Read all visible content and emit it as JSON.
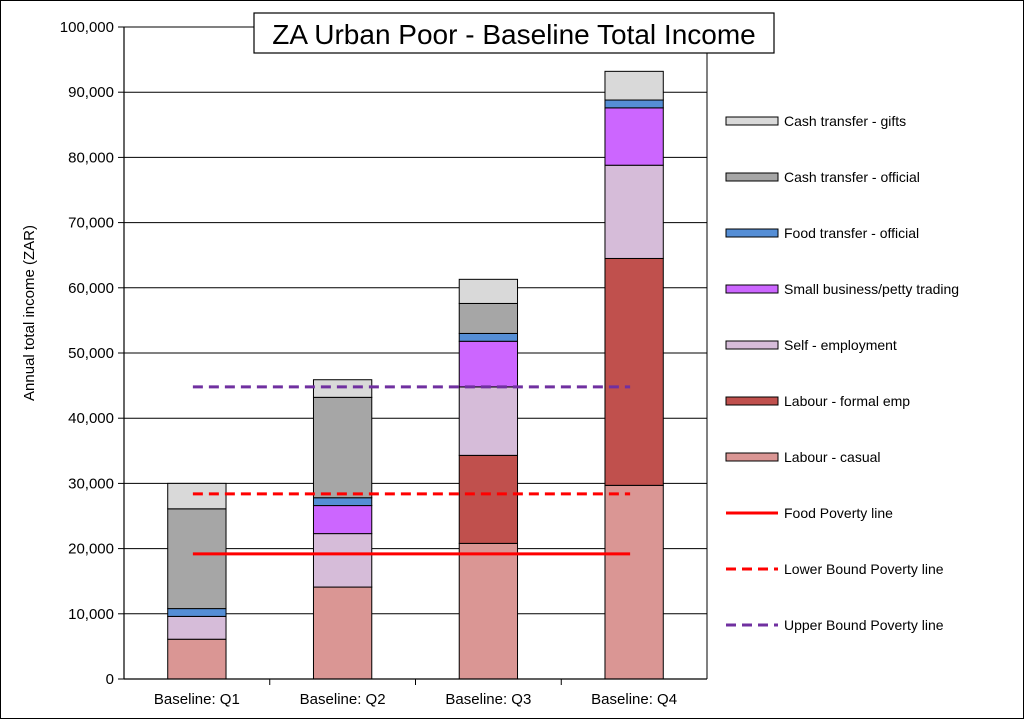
{
  "chart_data": {
    "type": "bar",
    "stacked": true,
    "title": "ZA Urban Poor - Baseline Total Income",
    "ylabel": "Annual total income (ZAR)",
    "xlabel": "",
    "ylim": [
      0,
      100000
    ],
    "yticks": [
      0,
      10000,
      20000,
      30000,
      40000,
      50000,
      60000,
      70000,
      80000,
      90000,
      100000
    ],
    "ytick_labels": [
      "0",
      "10,000",
      "20,000",
      "30,000",
      "40,000",
      "50,000",
      "60,000",
      "70,000",
      "80,000",
      "90,000",
      "100,000"
    ],
    "grid": true,
    "legend_position": "right",
    "categories": [
      "Baseline: Q1",
      "Baseline: Q2",
      "Baseline: Q3",
      "Baseline: Q4"
    ],
    "series": [
      {
        "name": "Labour - casual",
        "color": "#da9694",
        "values": [
          6100,
          14100,
          20800,
          29700
        ]
      },
      {
        "name": "Labour - formal emp",
        "color": "#c0504d",
        "values": [
          0,
          0,
          13500,
          34800
        ]
      },
      {
        "name": "Self - employment",
        "color": "#d6bcd9",
        "values": [
          3500,
          8200,
          10500,
          14300
        ]
      },
      {
        "name": "Small business/petty trading",
        "color": "#cc66ff",
        "values": [
          0,
          4300,
          7000,
          8800
        ]
      },
      {
        "name": "Food transfer - official",
        "color": "#558ed5",
        "values": [
          1200,
          1200,
          1200,
          1200
        ]
      },
      {
        "name": "Cash transfer - official",
        "color": "#a6a6a6",
        "values": [
          15300,
          15400,
          4600,
          0
        ]
      },
      {
        "name": "Cash transfer - gifts",
        "color": "#d9d9d9",
        "values": [
          3900,
          2700,
          3700,
          4400
        ]
      }
    ],
    "lines": [
      {
        "name": "Food Poverty line",
        "color": "#ff0000",
        "style": "solid",
        "value": 19200
      },
      {
        "name": "Lower Bound Poverty line",
        "color": "#ff0000",
        "style": "dashed",
        "value": 28400
      },
      {
        "name": "Upper Bound Poverty line",
        "color": "#7030a0",
        "style": "dashed",
        "value": 44800
      }
    ]
  }
}
